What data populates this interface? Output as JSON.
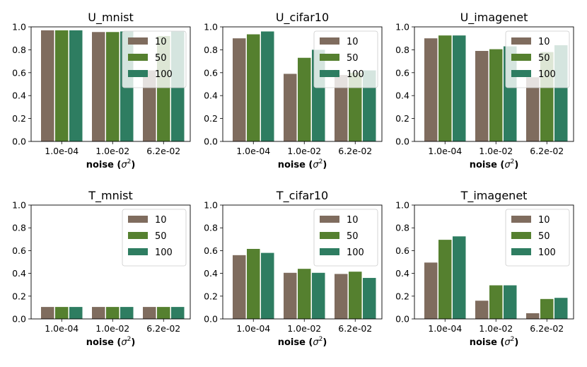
{
  "colors": {
    "s10": "#7f6c5e",
    "s50": "#55802f",
    "s100": "#2e7d61"
  },
  "xlabel_main": "noise (",
  "xlabel_sigma": "σ",
  "xlabel_sup": "2",
  "xlabel_close": ")",
  "chart_data": [
    {
      "type": "bar",
      "title": "U_mnist",
      "categories": [
        "1.0e-04",
        "1.0e-02",
        "6.2e-02"
      ],
      "ylim": [
        0,
        1.0
      ],
      "yticks": [
        "0.0",
        "0.2",
        "0.4",
        "0.6",
        "0.8",
        "1.0"
      ],
      "legend_location": "top-right",
      "series": [
        {
          "name": "10",
          "values": [
            0.97,
            0.955,
            0.62
          ]
        },
        {
          "name": "50",
          "values": [
            0.97,
            0.955,
            0.92
          ]
        },
        {
          "name": "100",
          "values": [
            0.97,
            0.96,
            0.96
          ]
        }
      ]
    },
    {
      "type": "bar",
      "title": "U_cifar10",
      "categories": [
        "1.0e-04",
        "1.0e-02",
        "6.2e-02"
      ],
      "ylim": [
        0,
        1.0
      ],
      "yticks": [
        "0.0",
        "0.2",
        "0.4",
        "0.6",
        "0.8",
        "1.0"
      ],
      "legend_location": "top-right",
      "series": [
        {
          "name": "10",
          "values": [
            0.9,
            0.59,
            0.58
          ]
        },
        {
          "name": "50",
          "values": [
            0.935,
            0.73,
            0.6
          ]
        },
        {
          "name": "100",
          "values": [
            0.96,
            0.8,
            0.62
          ]
        }
      ]
    },
    {
      "type": "bar",
      "title": "U_imagenet",
      "categories": [
        "1.0e-04",
        "1.0e-02",
        "6.2e-02"
      ],
      "ylim": [
        0,
        1.0
      ],
      "yticks": [
        "0.0",
        "0.2",
        "0.4",
        "0.6",
        "0.8",
        "1.0"
      ],
      "legend_location": "top-right",
      "series": [
        {
          "name": "10",
          "values": [
            0.9,
            0.79,
            0.56
          ]
        },
        {
          "name": "50",
          "values": [
            0.925,
            0.805,
            0.78
          ]
        },
        {
          "name": "100",
          "values": [
            0.925,
            0.83,
            0.84
          ]
        }
      ]
    },
    {
      "type": "bar",
      "title": "T_mnist",
      "categories": [
        "1.0e-04",
        "1.0e-02",
        "6.2e-02"
      ],
      "ylim": [
        0,
        1.0
      ],
      "yticks": [
        "0.0",
        "0.2",
        "0.4",
        "0.6",
        "0.8",
        "1.0"
      ],
      "legend_location": "top-right",
      "series": [
        {
          "name": "10",
          "values": [
            0.105,
            0.105,
            0.105
          ]
        },
        {
          "name": "50",
          "values": [
            0.105,
            0.105,
            0.105
          ]
        },
        {
          "name": "100",
          "values": [
            0.105,
            0.105,
            0.105
          ]
        }
      ]
    },
    {
      "type": "bar",
      "title": "T_cifar10",
      "categories": [
        "1.0e-04",
        "1.0e-02",
        "6.2e-02"
      ],
      "ylim": [
        0,
        1.0
      ],
      "yticks": [
        "0.0",
        "0.2",
        "0.4",
        "0.6",
        "0.8",
        "1.0"
      ],
      "legend_location": "top-right",
      "series": [
        {
          "name": "10",
          "values": [
            0.56,
            0.405,
            0.395
          ]
        },
        {
          "name": "50",
          "values": [
            0.615,
            0.44,
            0.415
          ]
        },
        {
          "name": "100",
          "values": [
            0.58,
            0.405,
            0.36
          ]
        }
      ]
    },
    {
      "type": "bar",
      "title": "T_imagenet",
      "categories": [
        "1.0e-04",
        "1.0e-02",
        "6.2e-02"
      ],
      "ylim": [
        0,
        1.0
      ],
      "yticks": [
        "0.0",
        "0.2",
        "0.4",
        "0.6",
        "0.8",
        "1.0"
      ],
      "legend_location": "top-right",
      "series": [
        {
          "name": "10",
          "values": [
            0.495,
            0.16,
            0.05
          ]
        },
        {
          "name": "50",
          "values": [
            0.695,
            0.295,
            0.175
          ]
        },
        {
          "name": "100",
          "values": [
            0.725,
            0.295,
            0.185
          ]
        }
      ]
    }
  ]
}
